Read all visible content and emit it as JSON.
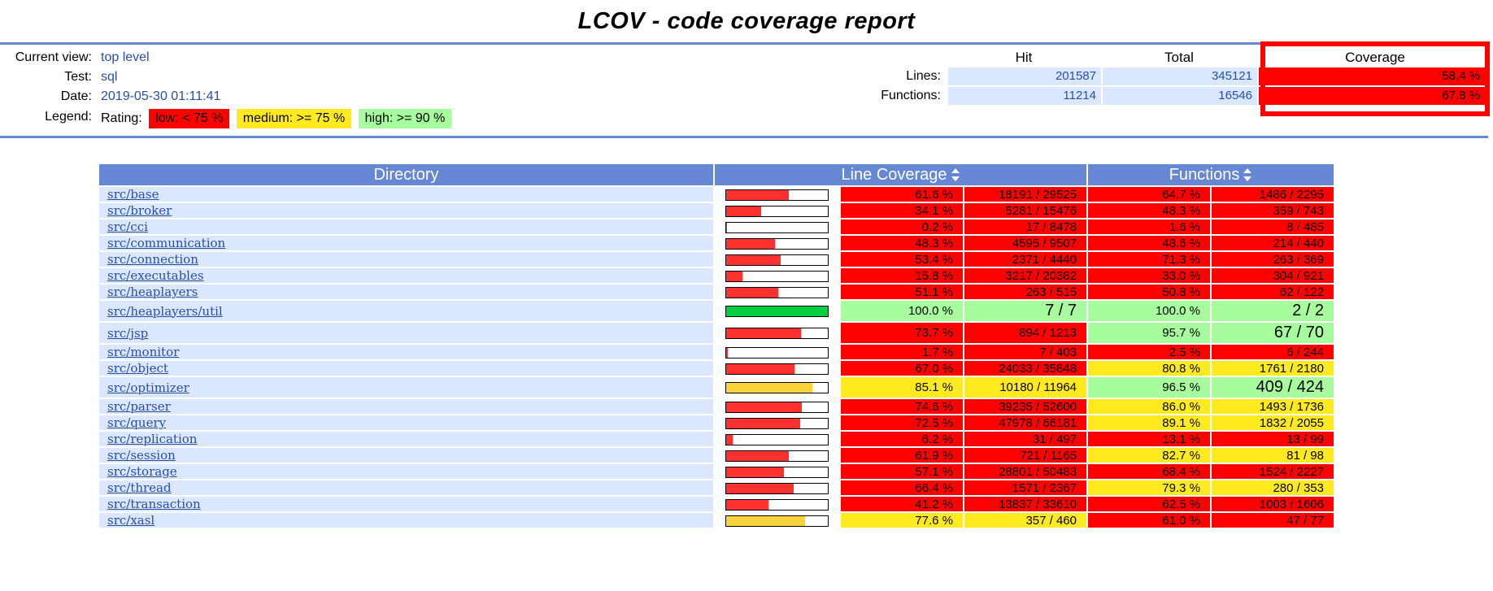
{
  "title": "LCOV - code coverage report",
  "info": {
    "current_view_label": "Current view:",
    "current_view": "top level",
    "test_label": "Test:",
    "test": "sql",
    "date_label": "Date:",
    "date": "2019-05-30 01:11:41",
    "legend_label": "Legend:",
    "rating_label": "Rating:",
    "legend_low": "low: < 75 %",
    "legend_medium": "medium: >= 75 %",
    "legend_high": "high: >= 90 %"
  },
  "summary": {
    "hit_header": "Hit",
    "total_header": "Total",
    "coverage_header": "Coverage",
    "lines_label": "Lines:",
    "lines_hit": "201587",
    "lines_total": "345121",
    "lines_cov": "58.4 %",
    "functions_label": "Functions:",
    "functions_hit": "11214",
    "functions_total": "16546",
    "functions_cov": "67.8 %"
  },
  "table": {
    "col_directory": "Directory",
    "col_line_coverage": "Line Coverage",
    "col_functions": "Functions",
    "rows": [
      {
        "dir": "src/base",
        "line_pct": "61.6 %",
        "line_ratio": "18191 / 29525",
        "func_pct": "64.7 %",
        "func_ratio": "1486 / 2295"
      },
      {
        "dir": "src/broker",
        "line_pct": "34.1 %",
        "line_ratio": "5281 / 15476",
        "func_pct": "48.3 %",
        "func_ratio": "359 / 743"
      },
      {
        "dir": "src/cci",
        "line_pct": "0.2 %",
        "line_ratio": "17 / 8478",
        "func_pct": "1.6 %",
        "func_ratio": "8 / 485"
      },
      {
        "dir": "src/communication",
        "line_pct": "48.3 %",
        "line_ratio": "4595 / 9507",
        "func_pct": "48.6 %",
        "func_ratio": "214 / 440"
      },
      {
        "dir": "src/connection",
        "line_pct": "53.4 %",
        "line_ratio": "2371 / 4440",
        "func_pct": "71.3 %",
        "func_ratio": "263 / 369"
      },
      {
        "dir": "src/executables",
        "line_pct": "15.8 %",
        "line_ratio": "3217 / 20382",
        "func_pct": "33.0 %",
        "func_ratio": "304 / 921"
      },
      {
        "dir": "src/heaplayers",
        "line_pct": "51.1 %",
        "line_ratio": "263 / 515",
        "func_pct": "50.8 %",
        "func_ratio": "62 / 122"
      },
      {
        "dir": "src/heaplayers/util",
        "line_pct": "100.0 %",
        "line_ratio": "7 / 7",
        "func_pct": "100.0 %",
        "func_ratio": "2 / 2"
      },
      {
        "dir": "src/jsp",
        "line_pct": "73.7 %",
        "line_ratio": "894 / 1213",
        "func_pct": "95.7 %",
        "func_ratio": "67 / 70"
      },
      {
        "dir": "src/monitor",
        "line_pct": "1.7 %",
        "line_ratio": "7 / 403",
        "func_pct": "2.5 %",
        "func_ratio": "6 / 244"
      },
      {
        "dir": "src/object",
        "line_pct": "67.0 %",
        "line_ratio": "24033 / 35848",
        "func_pct": "80.8 %",
        "func_ratio": "1761 / 2180"
      },
      {
        "dir": "src/optimizer",
        "line_pct": "85.1 %",
        "line_ratio": "10180 / 11964",
        "func_pct": "96.5 %",
        "func_ratio": "409 / 424"
      },
      {
        "dir": "src/parser",
        "line_pct": "74.6 %",
        "line_ratio": "39235 / 52600",
        "func_pct": "86.0 %",
        "func_ratio": "1493 / 1736"
      },
      {
        "dir": "src/query",
        "line_pct": "72.5 %",
        "line_ratio": "47978 / 66181",
        "func_pct": "89.1 %",
        "func_ratio": "1832 / 2055"
      },
      {
        "dir": "src/replication",
        "line_pct": "6.2 %",
        "line_ratio": "31 / 497",
        "func_pct": "13.1 %",
        "func_ratio": "13 / 99"
      },
      {
        "dir": "src/session",
        "line_pct": "61.9 %",
        "line_ratio": "721 / 1165",
        "func_pct": "82.7 %",
        "func_ratio": "81 / 98"
      },
      {
        "dir": "src/storage",
        "line_pct": "57.1 %",
        "line_ratio": "28801 / 50483",
        "func_pct": "68.4 %",
        "func_ratio": "1524 / 2227"
      },
      {
        "dir": "src/thread",
        "line_pct": "66.4 %",
        "line_ratio": "1571 / 2367",
        "func_pct": "79.3 %",
        "func_ratio": "280 / 353"
      },
      {
        "dir": "src/transaction",
        "line_pct": "41.2 %",
        "line_ratio": "13837 / 33610",
        "func_pct": "62.5 %",
        "func_ratio": "1003 / 1606"
      },
      {
        "dir": "src/xasl",
        "line_pct": "77.6 %",
        "line_ratio": "357 / 460",
        "func_pct": "61.0 %",
        "func_ratio": "47 / 77"
      }
    ]
  },
  "colors": {
    "low": "#ff0000",
    "medium": "#ffea20",
    "high": "#a7fc9d",
    "bar_low": "#ff3030",
    "bar_medium": "#f8d43a",
    "bar_high": "#00d040",
    "header_bg": "#6688d4",
    "link": "#284fa8"
  }
}
